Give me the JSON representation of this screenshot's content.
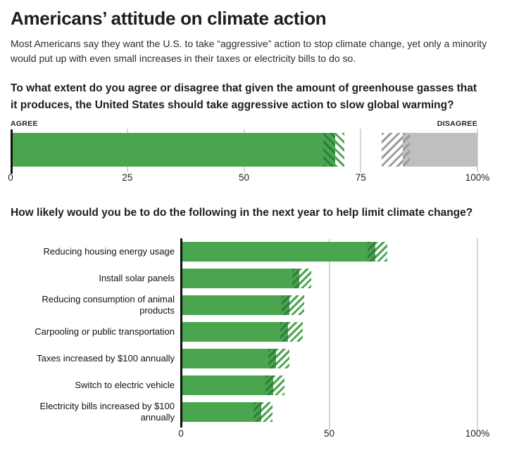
{
  "header": {
    "title": "Americans’ attitude on climate action",
    "subtitle": "Most Americans say they want the U.S. to take “aggressive” action to stop climate change, yet only a minority would put up with even small increases in their taxes or electricity bills to do so."
  },
  "colors": {
    "green": "#4aa54f",
    "green_dark": "#2f7d3b",
    "gray": "#bfbfbf",
    "gray_stripe": "#9a9a9a",
    "axis": "#111111",
    "gridline": "#d6d6d6"
  },
  "chart_data": [
    {
      "type": "bar",
      "orientation": "horizontal-stacked",
      "question": "To what extent do you agree or disagree that given the amount of greenhouse gasses that it produces, the United States should take aggressive action to slow global warming?",
      "side_labels": {
        "left": "AGREE",
        "right": "DISAGREE"
      },
      "axis": {
        "min": 0,
        "max": 100,
        "ticks": [
          "0",
          "25",
          "50",
          "75",
          "100%"
        ],
        "tick_values": [
          0,
          25,
          50,
          75,
          100
        ]
      },
      "grid": true,
      "segments": [
        {
          "name": "agree-solid",
          "start": 0,
          "end": 67,
          "style": "solid-green"
        },
        {
          "name": "agree-ci-inner",
          "start": 67,
          "end": 69.5,
          "style": "hatch-dark-on-green"
        },
        {
          "name": "agree-ci-outer",
          "start": 69.5,
          "end": 71.5,
          "style": "hatch-green-on-white"
        },
        {
          "name": "disagree-ci-outer",
          "start": 79.5,
          "end": 84,
          "style": "hatch-gray-on-white"
        },
        {
          "name": "disagree-ci-inner",
          "start": 84,
          "end": 85.5,
          "style": "hatch-dark-on-gray"
        },
        {
          "name": "disagree-solid",
          "start": 85.5,
          "end": 100,
          "style": "solid-gray"
        }
      ]
    },
    {
      "type": "bar",
      "orientation": "horizontal",
      "question": "How likely would you be to do the following in the next year to help limit climate change?",
      "axis": {
        "min": 0,
        "max": 100,
        "ticks": [
          "0",
          "50",
          "100%"
        ],
        "tick_values": [
          0,
          50,
          100
        ]
      },
      "grid": true,
      "hatch_overlay_width": 2.5,
      "bars": [
        {
          "label": "Reducing housing energy usage",
          "solid": 65.5,
          "hatch_end": 69.5
        },
        {
          "label": "Install solar panels",
          "solid": 40,
          "hatch_end": 44
        },
        {
          "label": "Reducing consumption of animal products",
          "solid": 36.5,
          "hatch_end": 41.5
        },
        {
          "label": "Carpooling or public transportation",
          "solid": 36,
          "hatch_end": 41
        },
        {
          "label": "Taxes increased by $100 annually",
          "solid": 32,
          "hatch_end": 36.5
        },
        {
          "label": "Switch to electric vehicle",
          "solid": 31,
          "hatch_end": 35
        },
        {
          "label": "Electricity bills increased by $100 annually",
          "solid": 27,
          "hatch_end": 31
        }
      ]
    }
  ]
}
